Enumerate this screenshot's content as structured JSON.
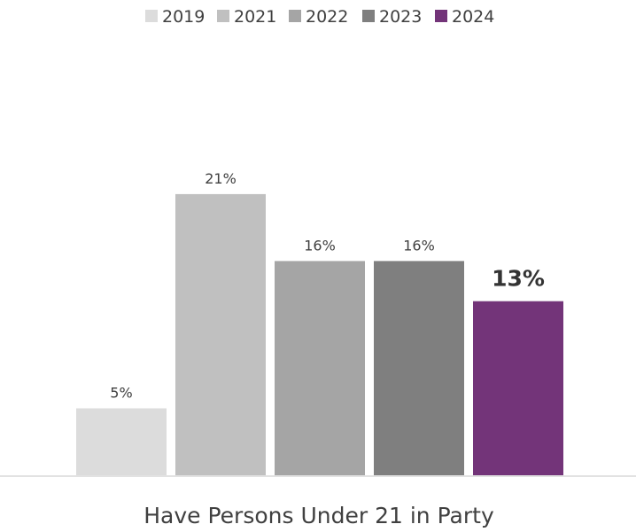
{
  "chart_data": {
    "type": "bar",
    "title": "",
    "xlabel": "",
    "ylabel": "",
    "categories": [
      "Have Persons Under 21 in Party"
    ],
    "ylim": [
      0,
      30
    ],
    "grid": false,
    "legend_position": "top-center",
    "series": [
      {
        "name": "2019",
        "values": [
          5
        ],
        "label": "5%",
        "color": "#dcdcdc"
      },
      {
        "name": "2021",
        "values": [
          21
        ],
        "label": "21%",
        "color": "#c0c0c0"
      },
      {
        "name": "2022",
        "values": [
          16
        ],
        "label": "16%",
        "color": "#a5a5a5"
      },
      {
        "name": "2023",
        "values": [
          16
        ],
        "label": "16%",
        "color": "#7f7f7f"
      },
      {
        "name": "2024",
        "values": [
          13
        ],
        "label": "13%",
        "color": "#733479",
        "emphasis": true
      }
    ]
  }
}
